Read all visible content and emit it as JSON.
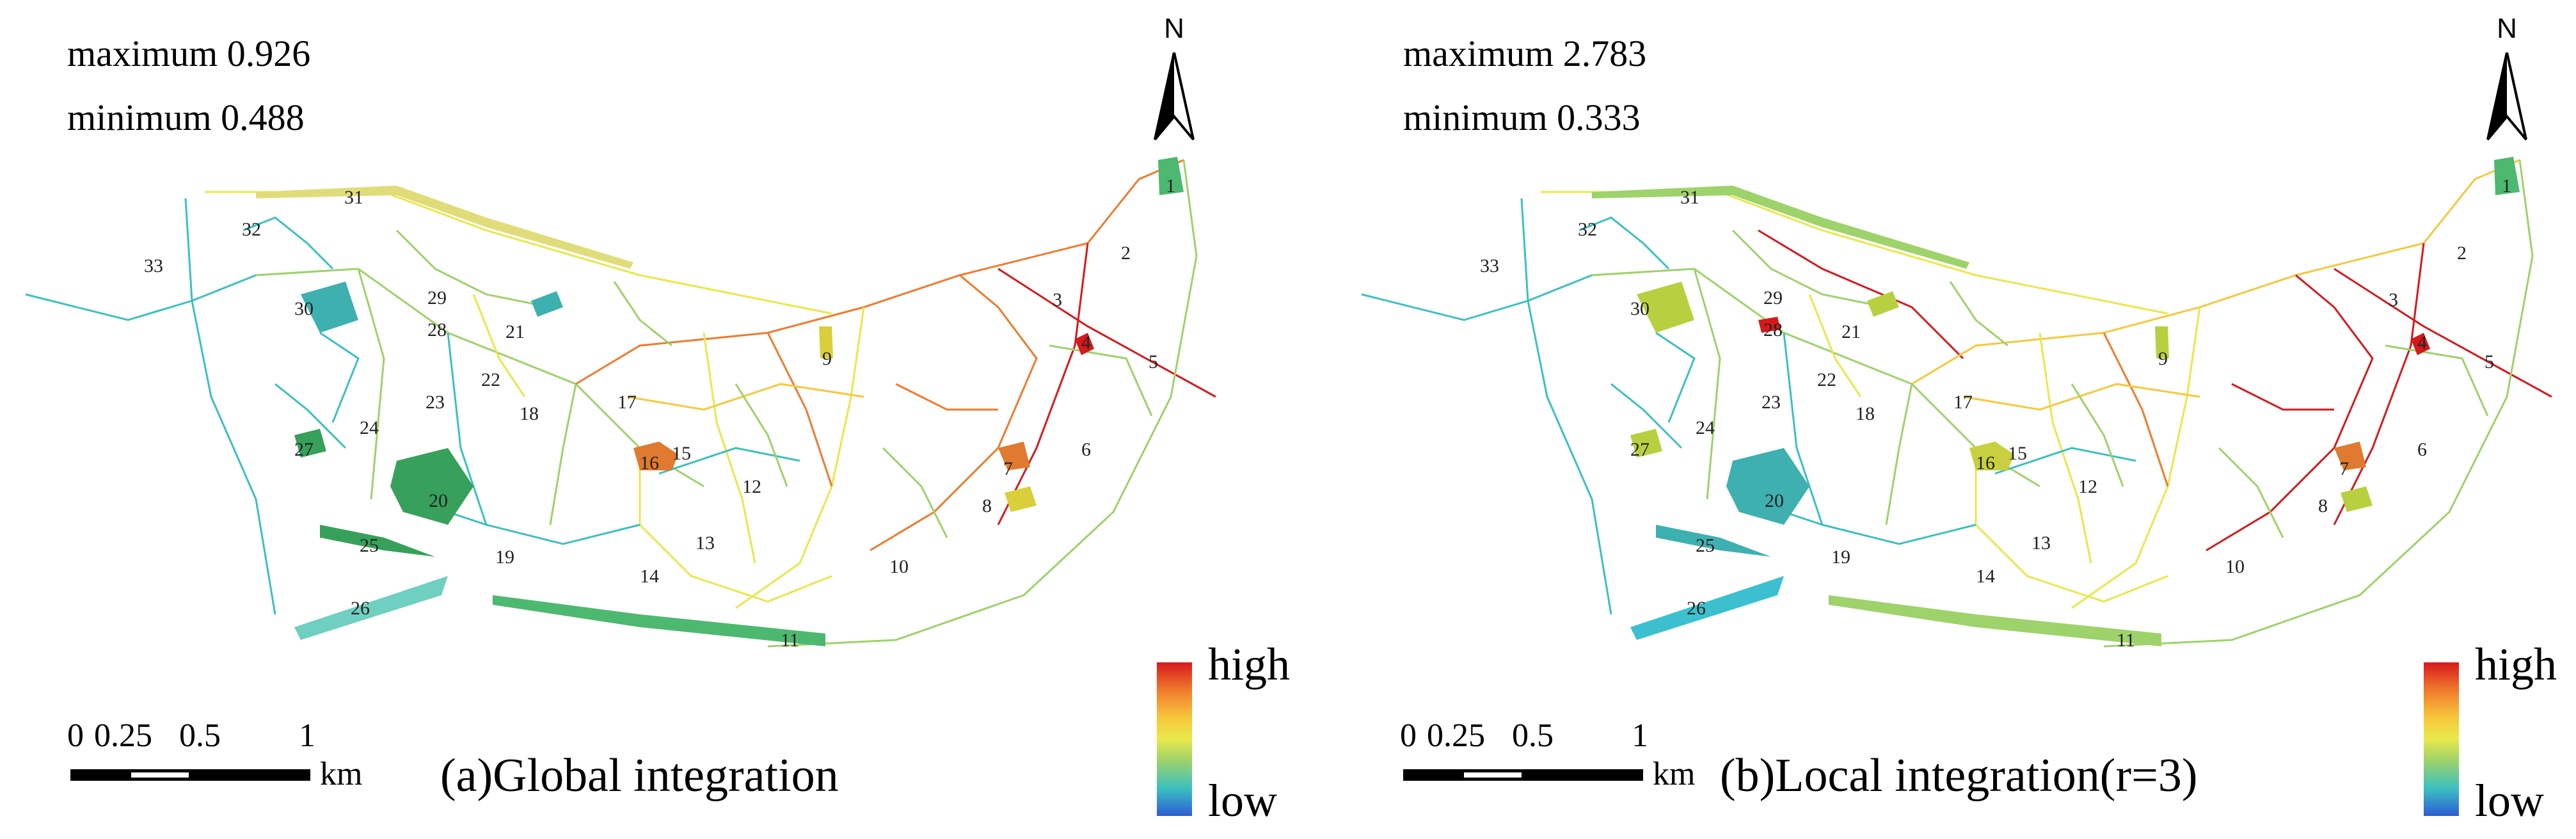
{
  "panels": [
    {
      "id": "a",
      "maximum": "maximum 0.926",
      "minimum": "minimum 0.488",
      "north": "N",
      "legend_high": "high",
      "legend_low": "low",
      "scale_ticks": [
        "0",
        "0.25",
        "0.5",
        "1"
      ],
      "scale_unit": "km",
      "caption": "(a)Global integration"
    },
    {
      "id": "b",
      "maximum": "maximum 2.783",
      "minimum": "minimum 0.333",
      "north": "N",
      "legend_high": "high",
      "legend_low": "low",
      "scale_ticks": [
        "0",
        "0.25",
        "0.5",
        "1"
      ],
      "scale_unit": "km",
      "caption": "(b)Local integration(r=3)"
    }
  ],
  "site_labels": [
    "1",
    "2",
    "3",
    "4",
    "5",
    "6",
    "7",
    "8",
    "9",
    "10",
    "11",
    "12",
    "13",
    "14",
    "15",
    "16",
    "17",
    "18",
    "19",
    "20",
    "21",
    "22",
    "23",
    "24",
    "25",
    "26",
    "27",
    "28",
    "29",
    "30",
    "31",
    "32",
    "33"
  ],
  "colors": {
    "high": "#d7191c",
    "orange": "#f07a2c",
    "yellow": "#e8e84b",
    "green": "#9ed26a",
    "cyan": "#3cc0c0",
    "low": "#2c5cd6"
  }
}
